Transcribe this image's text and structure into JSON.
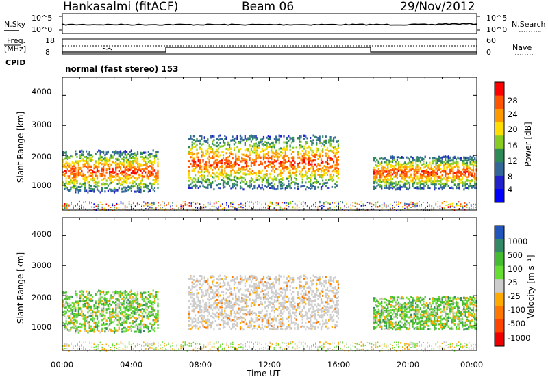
{
  "header": {
    "station": "Hankasalmi (fitACF)",
    "beam": "Beam 06",
    "date": "29/Nov/2012"
  },
  "top_panels": {
    "nsky_label": "N.Sky",
    "nsearch_label": "N.Search",
    "noise_ticks": [
      "10^5",
      "10^0"
    ],
    "freq_label": "Freq.",
    "freq_unit": "[MHz]",
    "freq_ticks": [
      "18",
      "8"
    ],
    "nave_ticks": [
      "60",
      "0"
    ],
    "nave_label": "Nave",
    "cpid_label": "CPID",
    "cpid_text": "normal (fast stereo) 153"
  },
  "axes": {
    "x_label": "Time UT",
    "x_ticks": [
      "00:00",
      "04:00",
      "08:00",
      "12:00",
      "16:00",
      "20:00",
      "00:00"
    ],
    "y_label": "Slant Range [km]",
    "y_ticks": [
      "4000",
      "3000",
      "2000",
      "1000"
    ]
  },
  "colorbars": {
    "power": {
      "label": "Power [dB]",
      "ticks": [
        "28",
        "24",
        "20",
        "16",
        "12",
        "8",
        "4"
      ],
      "colors": [
        "#ff0000",
        "#ff5500",
        "#ff9900",
        "#ffdd00",
        "#88cc22",
        "#2e8b57",
        "#336699",
        "#2222cc",
        "#0000ff"
      ]
    },
    "velocity": {
      "label": "Velocity [m s⁻¹]",
      "ticks": [
        "1000",
        "500",
        "100",
        "25",
        "-25",
        "-100",
        "-500",
        "-1000"
      ],
      "colors": [
        "#2255bb",
        "#338866",
        "#44bb33",
        "#66dd33",
        "#cccccc",
        "#ffaa00",
        "#ff7700",
        "#ff4400",
        "#ee0000"
      ]
    }
  },
  "chart_data": {
    "type": "heatmap",
    "x_range": [
      "00:00",
      "24:00"
    ],
    "y_range": [
      180,
      4600
    ],
    "power_scatter_regions": [
      {
        "t_start": 0.0,
        "t_end": 5.5,
        "range_low": 800,
        "range_high": 2200,
        "core_dB": 24
      },
      {
        "t_start": 7.3,
        "t_end": 16.0,
        "range_low": 900,
        "range_high": 2700,
        "core_dB": 26
      },
      {
        "t_start": 18.0,
        "t_end": 24.0,
        "range_low": 900,
        "range_high": 2000,
        "core_dB": 26
      }
    ],
    "velocity_scatter_regions": [
      {
        "t_start": 0.0,
        "t_end": 5.5,
        "range_low": 800,
        "range_high": 2200,
        "typical_ms": 100
      },
      {
        "t_start": 7.3,
        "t_end": 16.0,
        "range_low": 900,
        "range_high": 2700,
        "typical_ms": 0
      },
      {
        "t_start": 18.0,
        "t_end": 24.0,
        "range_low": 900,
        "range_high": 2000,
        "typical_ms": 100
      }
    ]
  }
}
